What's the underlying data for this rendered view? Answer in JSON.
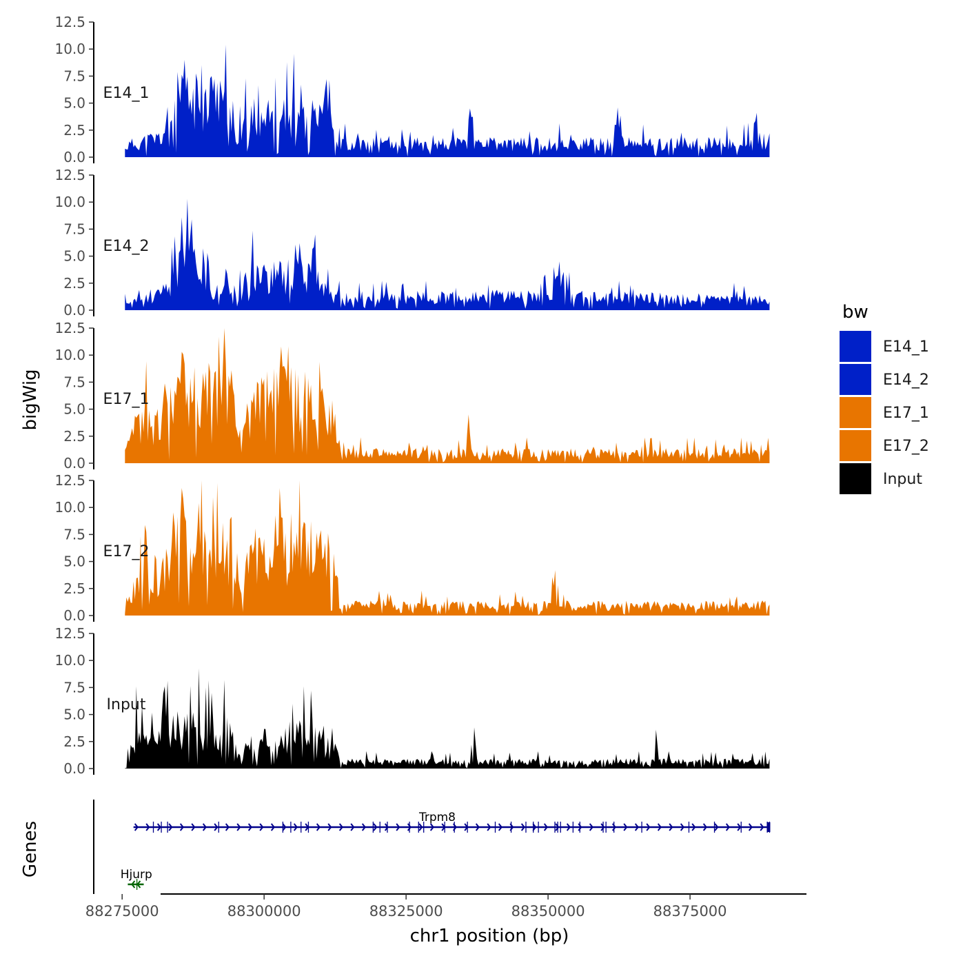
{
  "chart_data": {
    "type": "area",
    "ylabel": "bigWig",
    "genes_label": "Genes",
    "xlabel": "chr1 position (bp)",
    "xlim": [
      88270000,
      88395500
    ],
    "data_x_range": [
      88275500,
      88389000
    ],
    "x_ticks": [
      88275000,
      88300000,
      88325000,
      88350000,
      88375000
    ],
    "x_tick_labels": [
      "88275000",
      "88300000",
      "88325000",
      "88350000",
      "88375000"
    ],
    "ylim": [
      0,
      12.5
    ],
    "y_ticks": [
      0,
      2.5,
      5,
      7.5,
      10,
      12.5
    ],
    "y_tick_labels": [
      "0.0",
      "2.5",
      "5.0",
      "7.5",
      "10.0",
      "12.5"
    ],
    "legend": {
      "title": "bw",
      "entries": [
        {
          "label": "E14_1",
          "color": "#0020c8"
        },
        {
          "label": "E14_2",
          "color": "#0020c8"
        },
        {
          "label": "E17_1",
          "color": "#e87500"
        },
        {
          "label": "E17_2",
          "color": "#e87500"
        },
        {
          "label": "Input",
          "color": "#000000"
        }
      ]
    },
    "series": [
      {
        "name": "E14_1",
        "color": "#0020c8",
        "seed": 11,
        "profile": [
          {
            "x": 88275500,
            "v": 1.0
          },
          {
            "x": 88282000,
            "v": 1.8
          },
          {
            "x": 88284500,
            "v": 5.2
          },
          {
            "x": 88293000,
            "v": 5.0
          },
          {
            "x": 88295000,
            "v": 2.2
          },
          {
            "x": 88298000,
            "v": 3.6
          },
          {
            "x": 88311500,
            "v": 3.6
          },
          {
            "x": 88313000,
            "v": 1.2
          },
          {
            "x": 88389000,
            "v": 1.2
          }
        ],
        "peaks": [
          {
            "x": 88286000,
            "v": 9.0
          },
          {
            "x": 88293300,
            "v": 10.4
          },
          {
            "x": 88290800,
            "v": 7.5
          },
          {
            "x": 88306500,
            "v": 6.7
          },
          {
            "x": 88310800,
            "v": 6.3
          },
          {
            "x": 88336200,
            "v": 4.5
          },
          {
            "x": 88362200,
            "v": 4.6
          },
          {
            "x": 88386700,
            "v": 4.1
          }
        ]
      },
      {
        "name": "E14_2",
        "color": "#0020c8",
        "seed": 23,
        "profile": [
          {
            "x": 88276000,
            "v": 0.6
          },
          {
            "x": 88283000,
            "v": 1.8
          },
          {
            "x": 88285000,
            "v": 4.0
          },
          {
            "x": 88290000,
            "v": 3.8
          },
          {
            "x": 88291000,
            "v": 0.9
          },
          {
            "x": 88293000,
            "v": 3.0
          },
          {
            "x": 88310000,
            "v": 3.2
          },
          {
            "x": 88312000,
            "v": 1.1
          },
          {
            "x": 88350000,
            "v": 1.3
          },
          {
            "x": 88352000,
            "v": 2.2
          },
          {
            "x": 88354000,
            "v": 1.2
          },
          {
            "x": 88389000,
            "v": 0.9
          }
        ],
        "peaks": [
          {
            "x": 88285600,
            "v": 8.6
          },
          {
            "x": 88287200,
            "v": 8.4
          },
          {
            "x": 88306300,
            "v": 6.2
          },
          {
            "x": 88309000,
            "v": 7.0
          },
          {
            "x": 88352100,
            "v": 4.5
          }
        ]
      },
      {
        "name": "E17_1",
        "color": "#e87500",
        "seed": 37,
        "profile": [
          {
            "x": 88275500,
            "v": 0.8
          },
          {
            "x": 88278000,
            "v": 3.8
          },
          {
            "x": 88282000,
            "v": 3.5
          },
          {
            "x": 88284000,
            "v": 6.2
          },
          {
            "x": 88294500,
            "v": 6.6
          },
          {
            "x": 88296000,
            "v": 1.5
          },
          {
            "x": 88298000,
            "v": 6.2
          },
          {
            "x": 88311500,
            "v": 5.5
          },
          {
            "x": 88313500,
            "v": 0.9
          },
          {
            "x": 88389000,
            "v": 0.9
          }
        ],
        "peaks": [
          {
            "x": 88292000,
            "v": 11.7
          },
          {
            "x": 88303000,
            "v": 10.8
          },
          {
            "x": 88285500,
            "v": 10.3
          },
          {
            "x": 88336000,
            "v": 4.5
          }
        ]
      },
      {
        "name": "E17_2",
        "color": "#e87500",
        "seed": 53,
        "profile": [
          {
            "x": 88275500,
            "v": 0.8
          },
          {
            "x": 88278000,
            "v": 3.8
          },
          {
            "x": 88282000,
            "v": 3.6
          },
          {
            "x": 88284000,
            "v": 6.2
          },
          {
            "x": 88294500,
            "v": 6.0
          },
          {
            "x": 88296000,
            "v": 1.5
          },
          {
            "x": 88298000,
            "v": 6.2
          },
          {
            "x": 88311500,
            "v": 5.5
          },
          {
            "x": 88313500,
            "v": 0.9
          },
          {
            "x": 88389000,
            "v": 0.9
          }
        ],
        "peaks": [
          {
            "x": 88285500,
            "v": 11.8
          },
          {
            "x": 88302800,
            "v": 11.8
          },
          {
            "x": 88288500,
            "v": 10.4
          },
          {
            "x": 88351200,
            "v": 4.2
          }
        ]
      },
      {
        "name": "Input",
        "color": "#000000",
        "seed": 71,
        "profile": [
          {
            "x": 88275500,
            "v": 0.6
          },
          {
            "x": 88277500,
            "v": 3.2
          },
          {
            "x": 88284000,
            "v": 3.6
          },
          {
            "x": 88294000,
            "v": 3.3
          },
          {
            "x": 88296000,
            "v": 0.8
          },
          {
            "x": 88298000,
            "v": 2.8
          },
          {
            "x": 88311500,
            "v": 3.1
          },
          {
            "x": 88313500,
            "v": 0.6
          },
          {
            "x": 88389000,
            "v": 0.6
          }
        ],
        "peaks": [
          {
            "x": 88282500,
            "v": 7.6
          },
          {
            "x": 88305000,
            "v": 6.0
          },
          {
            "x": 88337000,
            "v": 3.8
          },
          {
            "x": 88369000,
            "v": 3.6
          }
        ]
      }
    ],
    "genes": [
      {
        "name": "Trpm8",
        "start": 88277000,
        "end": 88389000,
        "strand": "+",
        "color": "#00008b",
        "exons": [
          88280500,
          88281900,
          88283000,
          88292000,
          88303300,
          88304700,
          88306500,
          88307800,
          88319200,
          88320400,
          88321700,
          88325600,
          88327200,
          88328100,
          88331800,
          88333500,
          88335800,
          88340700,
          88343500,
          88346100,
          88347400,
          88348300,
          88351200,
          88351700,
          88352200,
          88354400,
          88355600,
          88359700,
          88360200,
          88361600,
          88366500,
          88374800,
          88379300,
          88384000,
          88388600,
          88389000
        ]
      },
      {
        "name": "Hjurp",
        "start": 88276000,
        "end": 88278800,
        "strand": "-",
        "color": "#006400",
        "exons": [
          88277600
        ]
      }
    ]
  }
}
